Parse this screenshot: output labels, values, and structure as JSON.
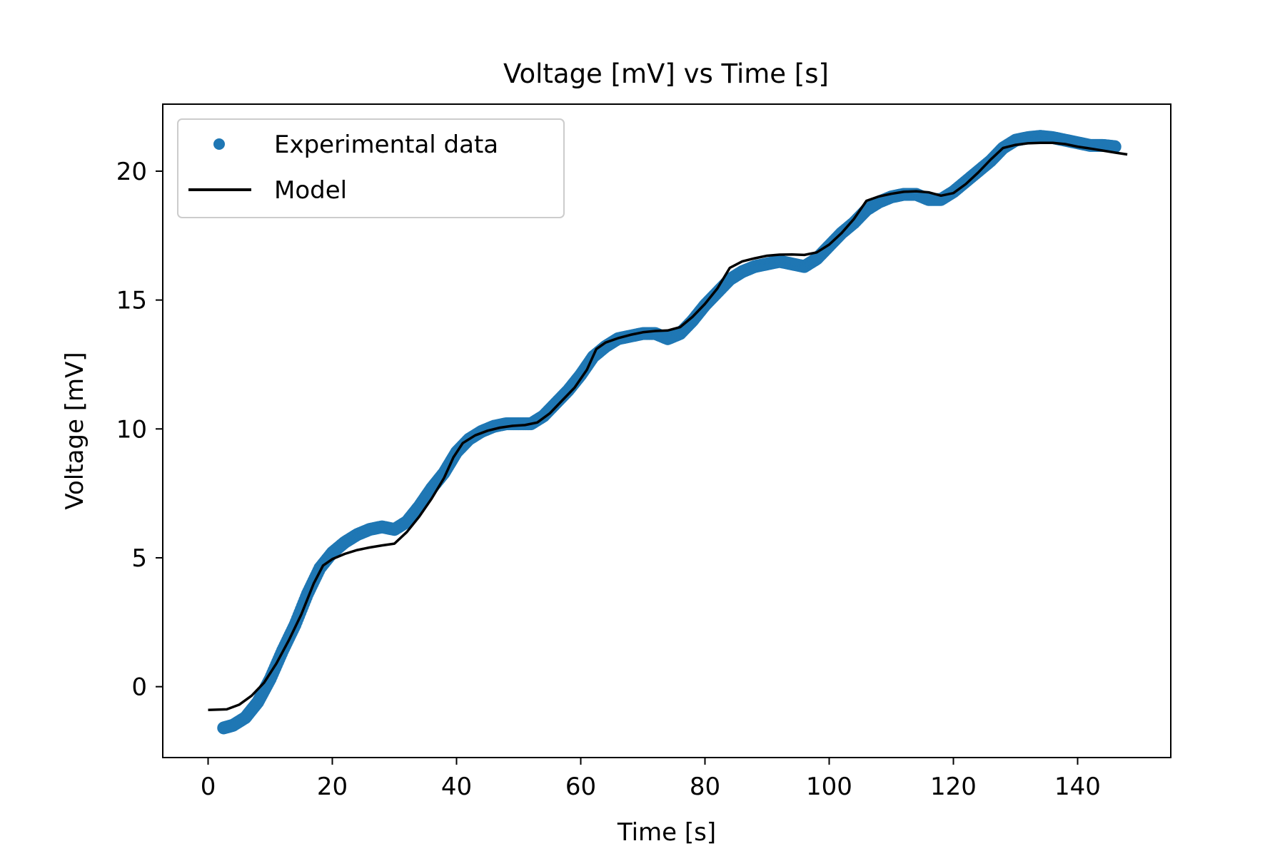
{
  "chart_data": {
    "type": "line",
    "title": "Voltage [mV] vs Time [s]",
    "xlabel": "Time [s]",
    "ylabel": "Voltage [mV]",
    "xlim": [
      -7.3,
      155
    ],
    "ylim": [
      -2.75,
      22.6
    ],
    "xticks": [
      0,
      20,
      40,
      60,
      80,
      100,
      120,
      140
    ],
    "yticks": [
      0,
      5,
      10,
      15,
      20
    ],
    "grid": false,
    "legend": {
      "placement": "top-left"
    },
    "series": [
      {
        "name": "Experimental data",
        "style": "scatter",
        "color": "#1f77b4",
        "x": [
          2.5,
          4,
          6,
          8,
          10,
          12,
          14,
          16,
          18,
          20,
          22,
          24,
          26,
          28,
          30,
          32,
          34,
          36,
          38,
          40,
          42,
          44,
          46,
          48,
          50,
          52,
          54,
          56,
          58,
          60,
          62,
          64,
          66,
          68,
          70,
          72,
          74,
          76,
          78,
          80,
          82,
          84,
          86,
          88,
          90,
          92,
          94,
          96,
          98,
          100,
          102,
          104,
          106,
          108,
          110,
          112,
          114,
          116,
          118,
          120,
          122,
          124,
          126,
          128,
          130,
          132,
          134,
          136,
          138,
          140,
          142,
          144,
          146
        ],
        "y": [
          -1.6,
          -1.5,
          -1.2,
          -0.6,
          0.3,
          1.4,
          2.4,
          3.6,
          4.6,
          5.2,
          5.6,
          5.9,
          6.1,
          6.2,
          6.1,
          6.4,
          7.0,
          7.7,
          8.3,
          9.1,
          9.6,
          9.9,
          10.1,
          10.2,
          10.2,
          10.2,
          10.5,
          11.0,
          11.5,
          12.1,
          12.8,
          13.2,
          13.5,
          13.6,
          13.7,
          13.7,
          13.5,
          13.7,
          14.2,
          14.8,
          15.3,
          15.8,
          16.1,
          16.3,
          16.4,
          16.5,
          16.4,
          16.3,
          16.6,
          17.1,
          17.6,
          18.0,
          18.5,
          18.8,
          19.0,
          19.1,
          19.1,
          18.9,
          18.9,
          19.2,
          19.6,
          20.0,
          20.4,
          20.9,
          21.2,
          21.3,
          21.35,
          21.3,
          21.2,
          21.1,
          21.0,
          21.0,
          20.95
        ]
      },
      {
        "name": "Model",
        "style": "line",
        "color": "#000000",
        "x": [
          0,
          3,
          5,
          7,
          9,
          11,
          13,
          15,
          17,
          18.5,
          20,
          22,
          24,
          26,
          28,
          30,
          32,
          34,
          36,
          38,
          39.5,
          41,
          43,
          45,
          47,
          49,
          51,
          53,
          55,
          57,
          59,
          61,
          62.5,
          64,
          66,
          68,
          70,
          72,
          74,
          76,
          78,
          80,
          82,
          84,
          86,
          88,
          90,
          92,
          94,
          96,
          98,
          100,
          102,
          104,
          106,
          108,
          110,
          112,
          114,
          116,
          118,
          120,
          122,
          124,
          126,
          128,
          130,
          132,
          134,
          136,
          138,
          140,
          142,
          144,
          146,
          148
        ],
        "y": [
          -0.9,
          -0.88,
          -0.7,
          -0.35,
          0.15,
          0.9,
          1.8,
          2.8,
          4.0,
          4.7,
          4.95,
          5.15,
          5.3,
          5.4,
          5.48,
          5.55,
          6.0,
          6.6,
          7.3,
          8.1,
          8.9,
          9.45,
          9.75,
          9.93,
          10.05,
          10.12,
          10.15,
          10.25,
          10.6,
          11.1,
          11.6,
          12.3,
          13.1,
          13.35,
          13.52,
          13.65,
          13.75,
          13.8,
          13.82,
          13.95,
          14.35,
          14.85,
          15.45,
          16.25,
          16.5,
          16.62,
          16.72,
          16.76,
          16.77,
          16.75,
          16.85,
          17.15,
          17.6,
          18.15,
          18.85,
          19.02,
          19.12,
          19.2,
          19.22,
          19.18,
          19.05,
          19.15,
          19.5,
          19.95,
          20.45,
          20.9,
          21.02,
          21.08,
          21.1,
          21.1,
          21.05,
          20.95,
          20.88,
          20.8,
          20.72,
          20.65
        ]
      }
    ]
  }
}
